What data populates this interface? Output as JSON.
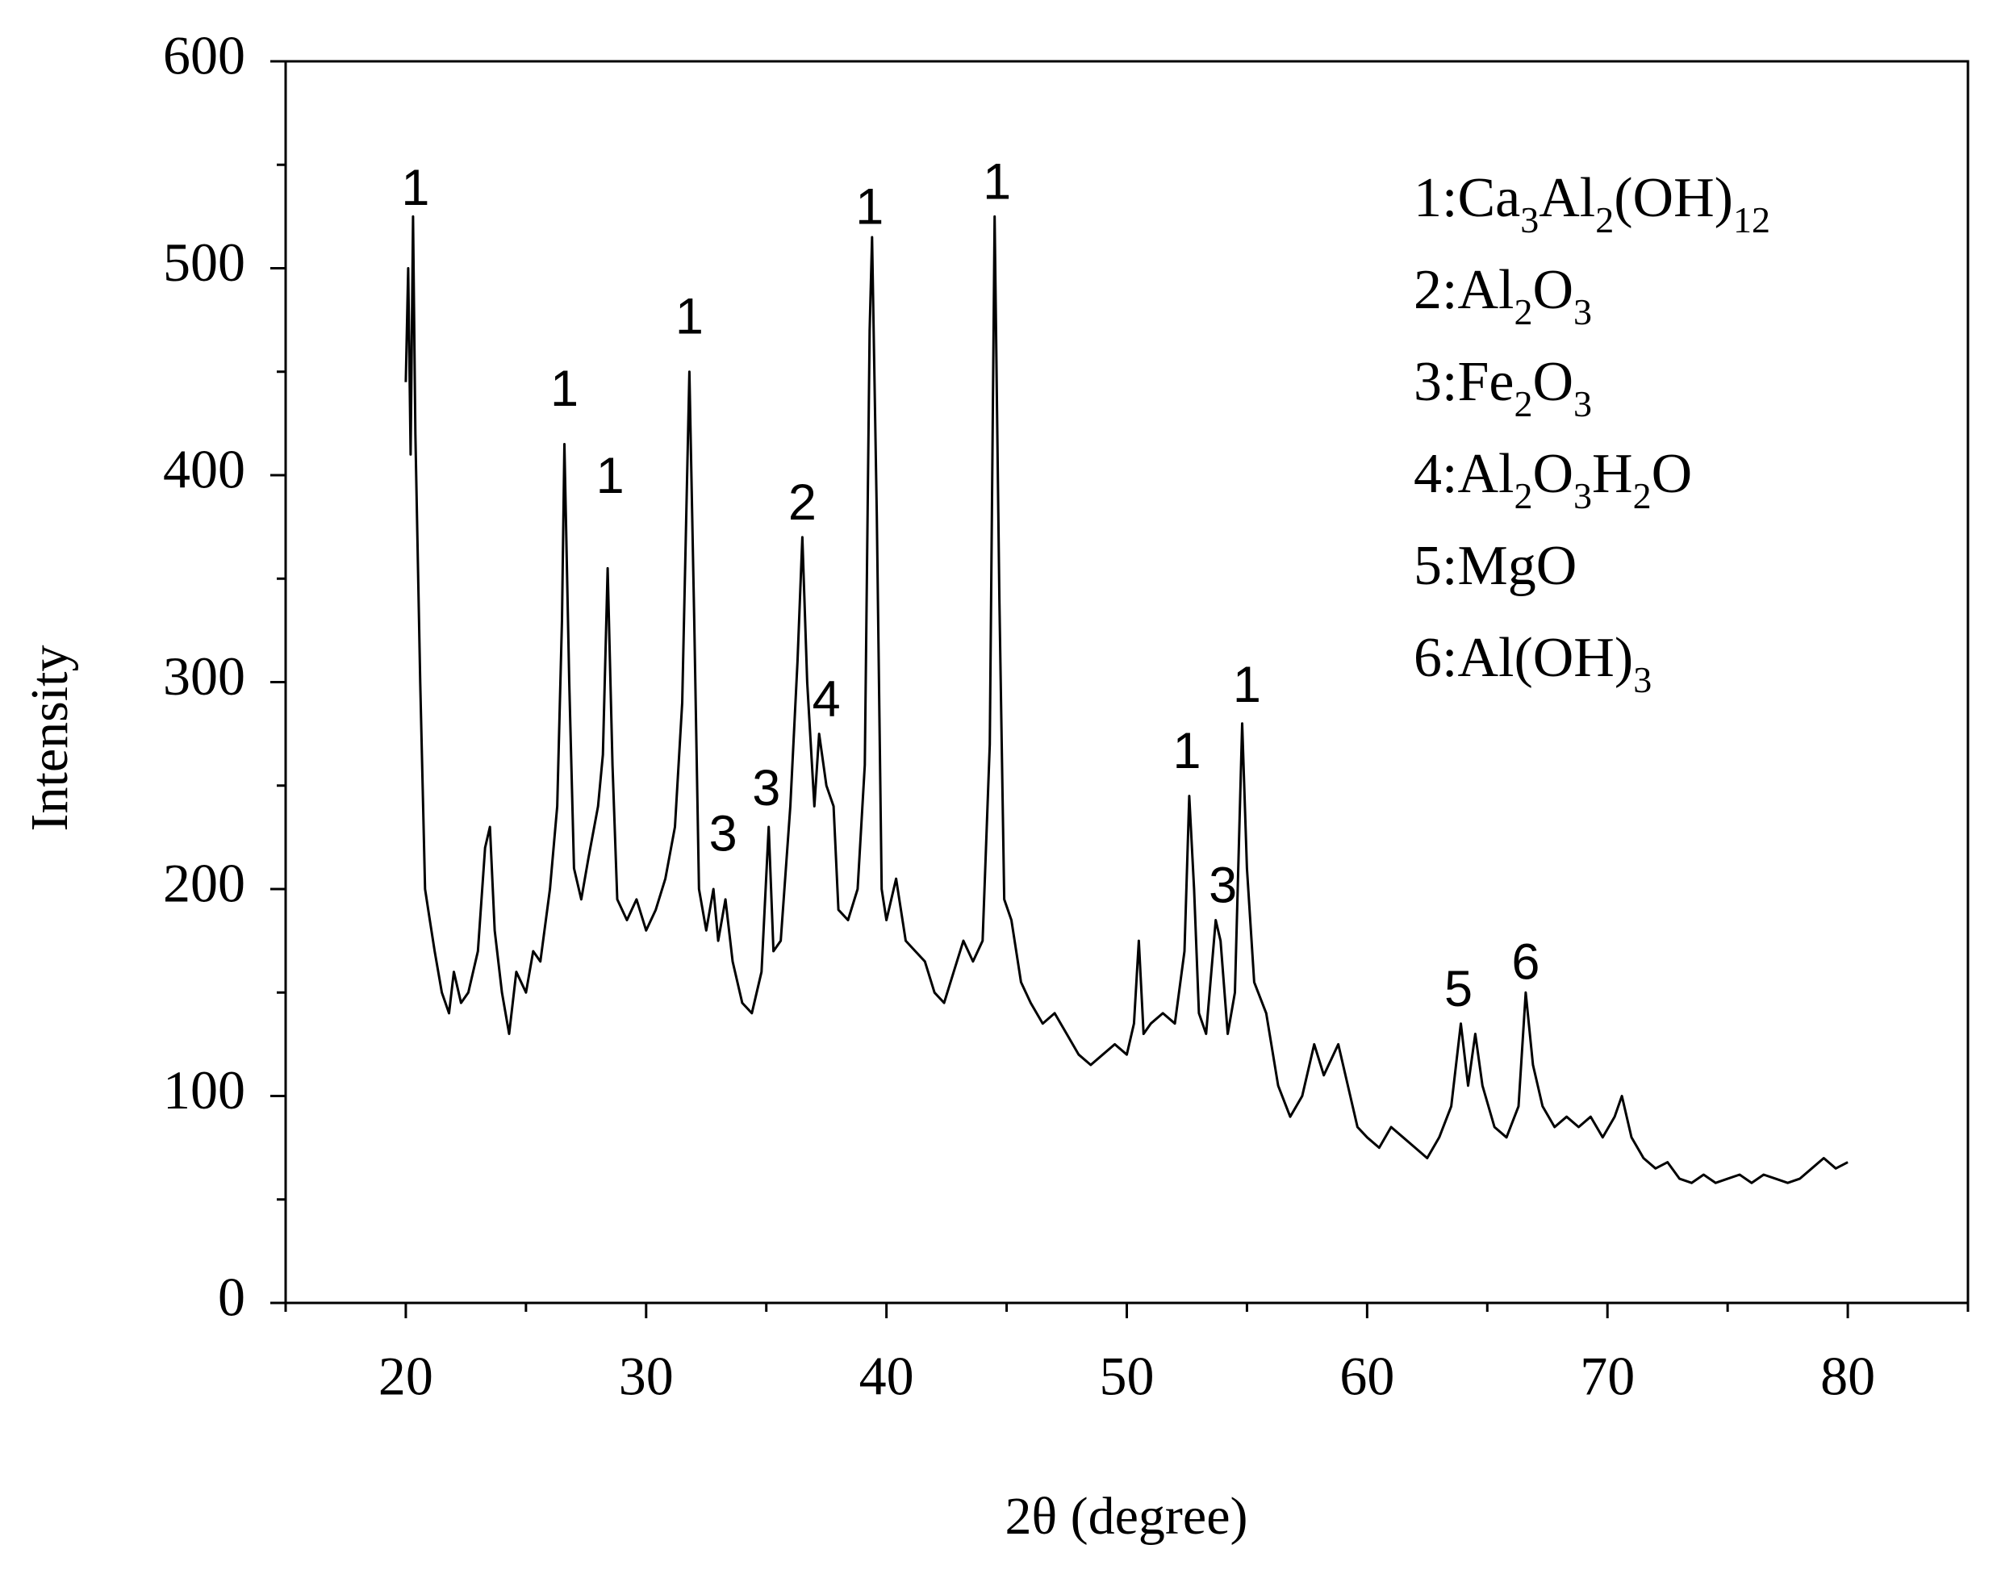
{
  "chart_data": {
    "type": "line",
    "xlabel": "2θ   (degree)",
    "ylabel": "Intensity",
    "xlim": [
      15,
      85
    ],
    "xticks": [
      20,
      30,
      40,
      50,
      60,
      70,
      80
    ],
    "xticks_minor": [
      15,
      25,
      35,
      45,
      55,
      65,
      75,
      85
    ],
    "ylim": [
      0,
      600
    ],
    "yticks": [
      0,
      100,
      200,
      300,
      400,
      500,
      600
    ],
    "yticks_minor": [
      50,
      150,
      250,
      350,
      450,
      550
    ],
    "grid": false,
    "series": [
      {
        "color": "#000000",
        "x": [
          20.0,
          20.1,
          20.2,
          20.3,
          20.4,
          20.6,
          20.8,
          21.0,
          21.2,
          21.5,
          21.8,
          22.0,
          22.3,
          22.6,
          23.0,
          23.3,
          23.5,
          23.7,
          24.0,
          24.3,
          24.6,
          25.0,
          25.3,
          25.6,
          26.0,
          26.3,
          26.5,
          26.6,
          26.8,
          27.0,
          27.3,
          27.6,
          28.0,
          28.2,
          28.4,
          28.6,
          28.8,
          29.2,
          29.6,
          30.0,
          30.4,
          30.8,
          31.2,
          31.5,
          31.8,
          32.0,
          32.2,
          32.5,
          32.8,
          33.0,
          33.3,
          33.6,
          34.0,
          34.4,
          34.8,
          35.1,
          35.3,
          35.6,
          36.0,
          36.3,
          36.5,
          36.7,
          37.0,
          37.2,
          37.5,
          37.8,
          38.0,
          38.4,
          38.8,
          39.1,
          39.3,
          39.4,
          39.6,
          39.8,
          40.0,
          40.4,
          40.8,
          41.2,
          41.6,
          42.0,
          42.4,
          42.8,
          43.2,
          43.6,
          44.0,
          44.3,
          44.5,
          44.7,
          44.9,
          45.2,
          45.6,
          46.0,
          46.5,
          47.0,
          47.5,
          48.0,
          48.5,
          49.0,
          49.5,
          50.0,
          50.3,
          50.5,
          50.7,
          51.0,
          51.5,
          52.0,
          52.4,
          52.6,
          52.8,
          53.0,
          53.3,
          53.7,
          53.9,
          54.2,
          54.5,
          54.8,
          55.0,
          55.3,
          55.8,
          56.3,
          56.8,
          57.3,
          57.8,
          58.2,
          58.8,
          59.2,
          59.6,
          60.0,
          60.5,
          61.0,
          61.5,
          62.0,
          62.5,
          63.0,
          63.5,
          63.9,
          64.2,
          64.5,
          64.8,
          65.3,
          65.8,
          66.3,
          66.6,
          66.9,
          67.3,
          67.8,
          68.3,
          68.8,
          69.3,
          69.8,
          70.3,
          70.6,
          71.0,
          71.5,
          72.0,
          72.5,
          73.0,
          73.5,
          74.0,
          74.5,
          75.0,
          75.5,
          76.0,
          76.5,
          77.0,
          77.5,
          78.0,
          78.5,
          79.0,
          79.5,
          80.0
        ],
        "values": [
          445,
          500,
          410,
          525,
          420,
          300,
          200,
          185,
          170,
          150,
          140,
          160,
          145,
          150,
          170,
          220,
          230,
          180,
          150,
          130,
          160,
          150,
          170,
          165,
          200,
          240,
          330,
          415,
          300,
          210,
          195,
          215,
          240,
          265,
          355,
          260,
          195,
          185,
          195,
          180,
          190,
          205,
          230,
          290,
          450,
          330,
          200,
          180,
          200,
          175,
          195,
          165,
          145,
          140,
          160,
          230,
          170,
          175,
          240,
          310,
          370,
          300,
          240,
          275,
          250,
          240,
          190,
          185,
          200,
          260,
          470,
          515,
          380,
          200,
          185,
          205,
          175,
          170,
          165,
          150,
          145,
          160,
          175,
          165,
          175,
          270,
          525,
          340,
          195,
          185,
          155,
          145,
          135,
          140,
          130,
          120,
          115,
          120,
          125,
          120,
          135,
          175,
          130,
          135,
          140,
          135,
          170,
          245,
          200,
          140,
          130,
          185,
          175,
          130,
          150,
          280,
          210,
          155,
          140,
          105,
          90,
          100,
          125,
          110,
          125,
          105,
          85,
          80,
          75,
          85,
          80,
          75,
          70,
          80,
          95,
          135,
          105,
          130,
          105,
          85,
          80,
          95,
          150,
          115,
          95,
          85,
          90,
          85,
          90,
          80,
          90,
          100,
          80,
          70,
          65,
          68,
          60,
          58,
          62,
          58,
          60,
          62,
          58,
          62,
          60,
          58,
          60,
          65,
          70,
          65,
          68
        ]
      }
    ],
    "annotations": [
      {
        "text": "1",
        "x": 20.4,
        "y": 537
      },
      {
        "text": "1",
        "x": 26.6,
        "y": 440
      },
      {
        "text": "1",
        "x": 28.5,
        "y": 398
      },
      {
        "text": "1",
        "x": 31.8,
        "y": 475
      },
      {
        "text": "3",
        "x": 33.2,
        "y": 225
      },
      {
        "text": "3",
        "x": 35.0,
        "y": 247
      },
      {
        "text": "2",
        "x": 36.5,
        "y": 385
      },
      {
        "text": "4",
        "x": 37.5,
        "y": 290
      },
      {
        "text": "1",
        "x": 39.3,
        "y": 528
      },
      {
        "text": "1",
        "x": 44.6,
        "y": 540
      },
      {
        "text": "1",
        "x": 52.5,
        "y": 265
      },
      {
        "text": "3",
        "x": 54.0,
        "y": 200
      },
      {
        "text": "1",
        "x": 55.0,
        "y": 297
      },
      {
        "text": "5",
        "x": 63.8,
        "y": 150
      },
      {
        "text": "6",
        "x": 66.6,
        "y": 163
      }
    ],
    "legend_entries": [
      [
        "1:Ca",
        "3",
        "Al",
        "2",
        "(OH)",
        "12"
      ],
      [
        "2:Al",
        "2",
        "O",
        "3"
      ],
      [
        "3:Fe",
        "2",
        "O",
        "3"
      ],
      [
        "4:Al",
        "2",
        "O",
        "3",
        "H",
        "2",
        "O"
      ],
      [
        "5:MgO"
      ],
      [
        "6:Al(OH)",
        "3"
      ]
    ]
  }
}
